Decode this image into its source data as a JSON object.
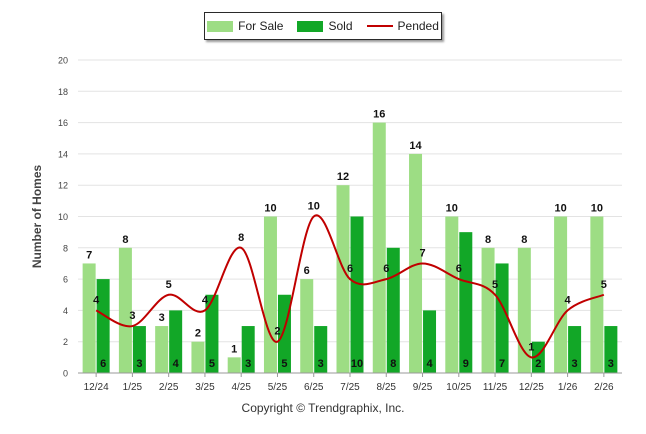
{
  "chart_data": {
    "type": "bar",
    "title": "",
    "xlabel": "",
    "ylabel": "Number of Homes",
    "ylim": [
      0,
      20
    ],
    "yticks": [
      0,
      2,
      4,
      6,
      8,
      10,
      12,
      14,
      16,
      18,
      20
    ],
    "grid": true,
    "legend_position": "top-center",
    "categories": [
      "12/24",
      "1/25",
      "2/25",
      "3/25",
      "4/25",
      "5/25",
      "6/25",
      "7/25",
      "8/25",
      "9/25",
      "10/25",
      "11/25",
      "12/25",
      "1/26",
      "2/26"
    ],
    "series": [
      {
        "name": "For Sale",
        "kind": "bar",
        "color": "#9ddd84",
        "values": [
          7,
          8,
          3,
          2,
          1,
          10,
          6,
          12,
          16,
          14,
          10,
          8,
          8,
          10,
          10
        ]
      },
      {
        "name": "Sold",
        "kind": "bar",
        "color": "#12a727",
        "values": [
          6,
          3,
          4,
          5,
          3,
          5,
          3,
          10,
          8,
          4,
          9,
          7,
          2,
          3,
          3
        ]
      },
      {
        "name": "Pended",
        "kind": "line",
        "color": "#c00000",
        "values": [
          4,
          3,
          5,
          4,
          8,
          2,
          10,
          6,
          6,
          7,
          6,
          5,
          1,
          4,
          5
        ]
      }
    ]
  },
  "footer": "Copyright © Trendgraphix, Inc."
}
